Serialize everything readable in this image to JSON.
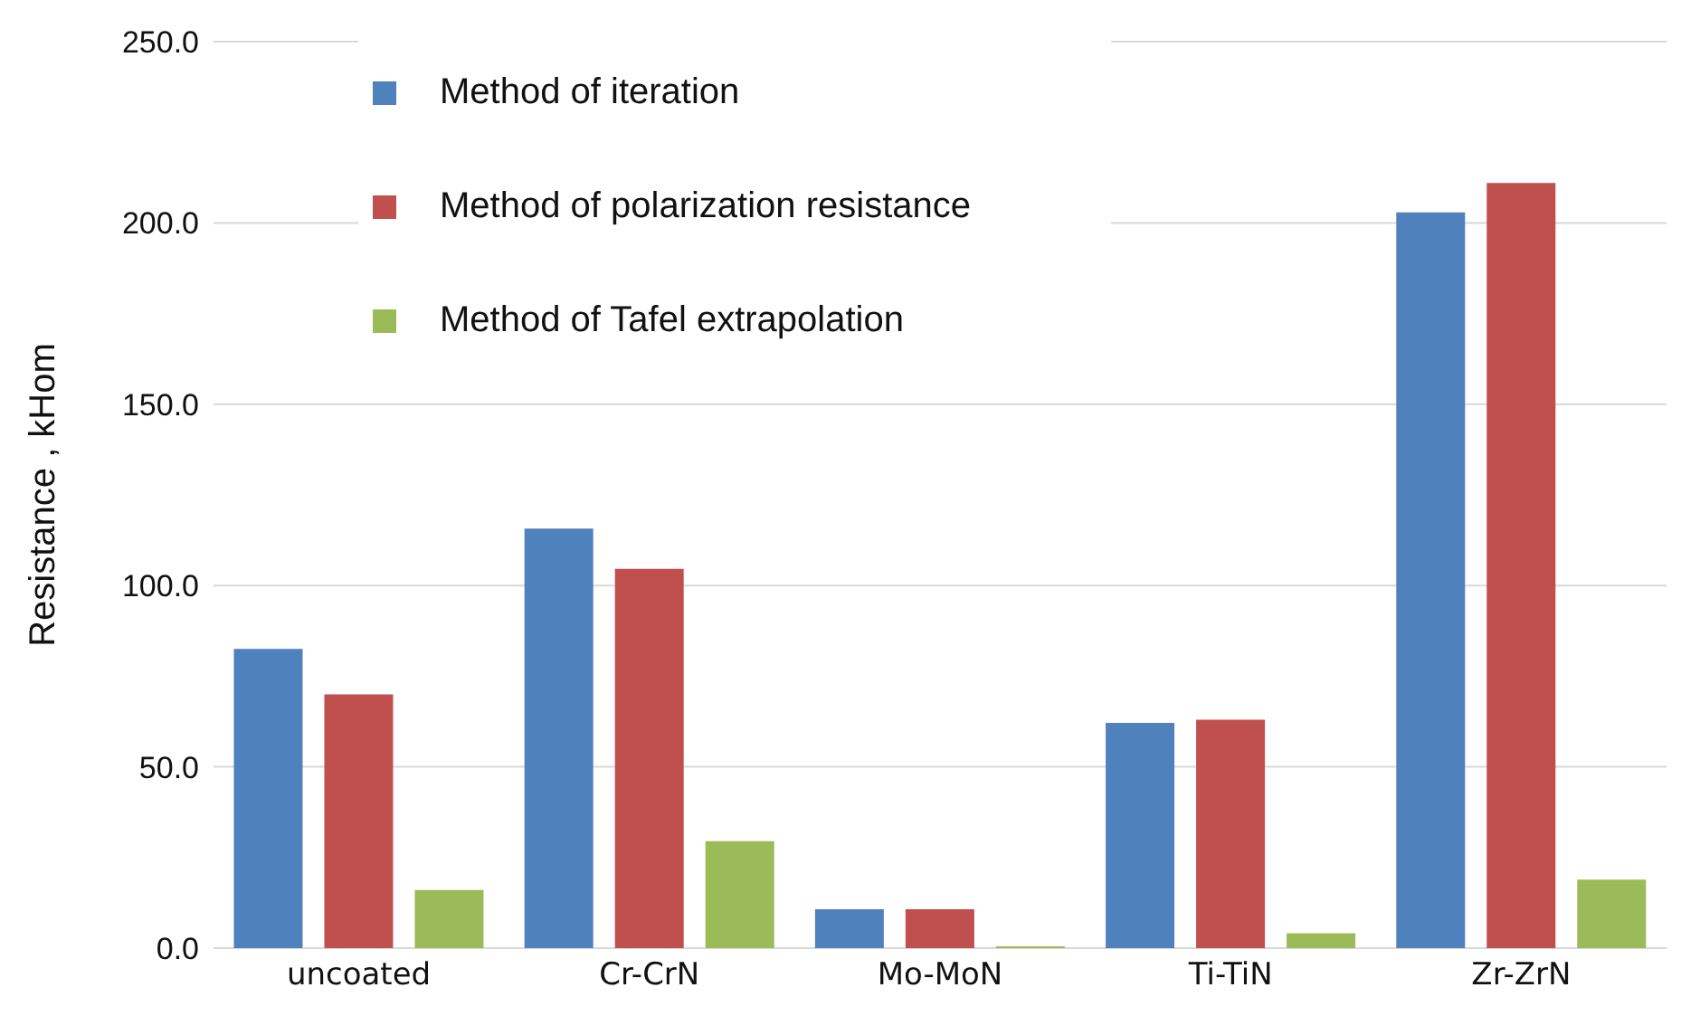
{
  "chart_data": {
    "type": "bar",
    "ylabel": "Resistance , kHom",
    "categories": [
      "uncoated",
      "Cr-CrN",
      "Mo-MoN",
      "Ti-TiN",
      "Zr-ZrN"
    ],
    "series": [
      {
        "name": "Method of iteration",
        "color": "#4f81bd",
        "values": [
          82.5,
          115.7,
          10.7,
          62.1,
          202.9
        ]
      },
      {
        "name": "Method of polarization resistance",
        "color": "#c0504d",
        "values": [
          70.0,
          104.6,
          10.7,
          63.0,
          211.0
        ]
      },
      {
        "name": "Method of Tafel extrapolation",
        "color": "#9bbb59",
        "values": [
          16.0,
          29.5,
          0.5,
          4.1,
          18.9
        ]
      }
    ],
    "ylim": [
      0,
      250
    ],
    "yticks": [
      {
        "value": 0,
        "label": "0.0"
      },
      {
        "value": 50,
        "label": "50.0"
      },
      {
        "value": 100,
        "label": "100.0"
      },
      {
        "value": 150,
        "label": "150.0"
      },
      {
        "value": 200,
        "label": "200.0"
      },
      {
        "value": 250,
        "label": "250.0"
      }
    ],
    "grid": "y",
    "legend": "top left"
  }
}
